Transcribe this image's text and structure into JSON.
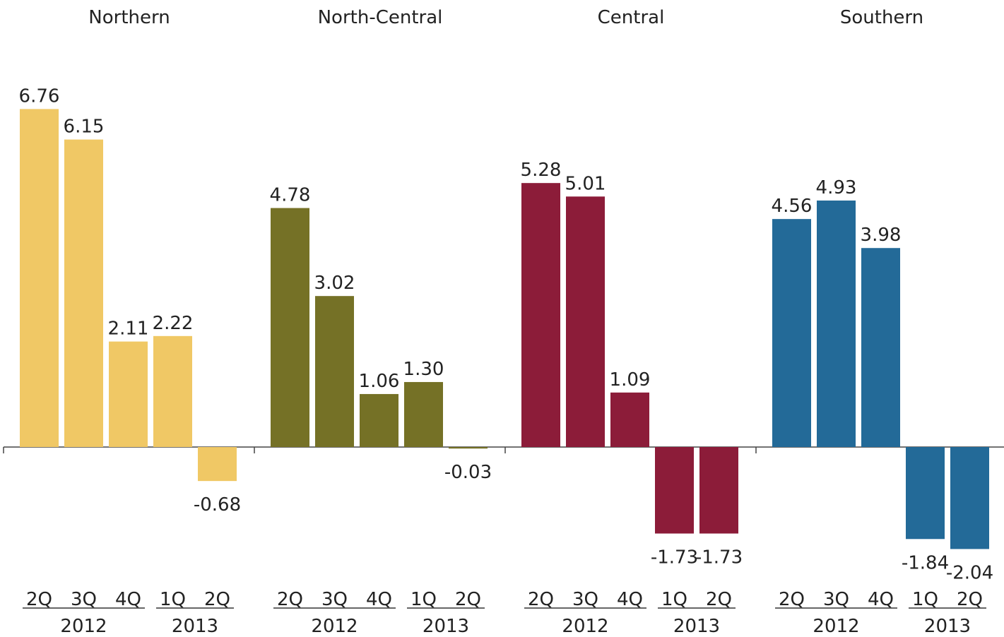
{
  "chart_data": {
    "type": "bar",
    "grid": false,
    "legend": "none",
    "ylim": [
      -2.5,
      7
    ],
    "categories": [
      "2Q 2012",
      "3Q 2012",
      "4Q 2012",
      "1Q 2013",
      "2Q 2013"
    ],
    "quarter_labels": [
      "2Q",
      "3Q",
      "4Q",
      "1Q",
      "2Q"
    ],
    "year_groups": [
      {
        "label": "2012",
        "from": 0,
        "to": 2
      },
      {
        "label": "2013",
        "from": 3,
        "to": 4
      }
    ],
    "panels": [
      {
        "title": "Northern",
        "color": "#F0C865",
        "values": [
          6.76,
          6.15,
          2.11,
          2.22,
          -0.68
        ],
        "value_labels": [
          "6.76",
          "6.15",
          "2.11",
          "2.22",
          "-0.68"
        ]
      },
      {
        "title": "North-Central",
        "color": "#757126",
        "values": [
          4.78,
          3.02,
          1.06,
          1.3,
          -0.03
        ],
        "value_labels": [
          "4.78",
          "3.02",
          "1.06",
          "1.30",
          "-0.03"
        ]
      },
      {
        "title": "Central",
        "color": "#8C1C39",
        "values": [
          5.28,
          5.01,
          1.09,
          -1.73,
          -1.73
        ],
        "value_labels": [
          "5.28",
          "5.01",
          "1.09",
          "-1.73",
          "-1.73"
        ]
      },
      {
        "title": "Southern",
        "color": "#236A98",
        "values": [
          4.56,
          4.93,
          3.98,
          -1.84,
          -2.04
        ],
        "value_labels": [
          "4.56",
          "4.93",
          "3.98",
          "-1.84",
          "-2.04"
        ]
      }
    ]
  }
}
